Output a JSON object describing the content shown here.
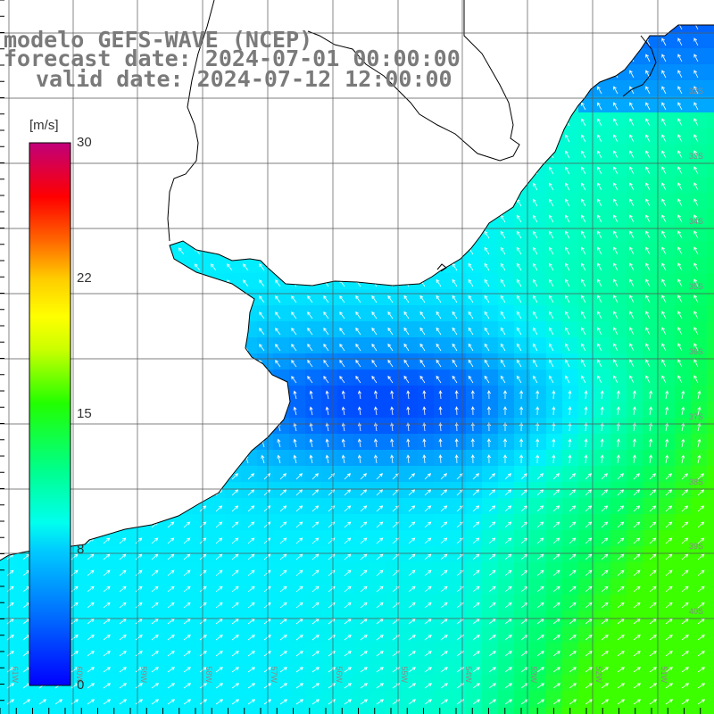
{
  "title": {
    "line1": "modelo GEFS-WAVE (NCEP)",
    "line2": "forecast date: 2024-07-01 00:00:00",
    "line3": "valid date: 2024-07-12 12:00:00"
  },
  "colorbar": {
    "unit": "[m/s]",
    "ticks": [
      "30",
      "22",
      "15",
      "8",
      "0"
    ]
  },
  "lat_labels": [
    "32S",
    "33S",
    "34S",
    "35S",
    "36S",
    "37S",
    "38S",
    "39S",
    "40S"
  ],
  "lon_labels": [
    "61W",
    "60W",
    "59W",
    "58W",
    "57W",
    "56W",
    "55W",
    "54W",
    "53W",
    "52W",
    "51W"
  ],
  "colors": {
    "land": "#ffffff",
    "coast": "#000000",
    "grid": "#555555",
    "arrow": "#ffffff",
    "colorscale": [
      "#0000ff",
      "#00aaff",
      "#00ffff",
      "#00ff44",
      "#66ff00",
      "#ffff00",
      "#ff9900",
      "#ff0000",
      "#ff0044",
      "#c00070"
    ]
  }
}
